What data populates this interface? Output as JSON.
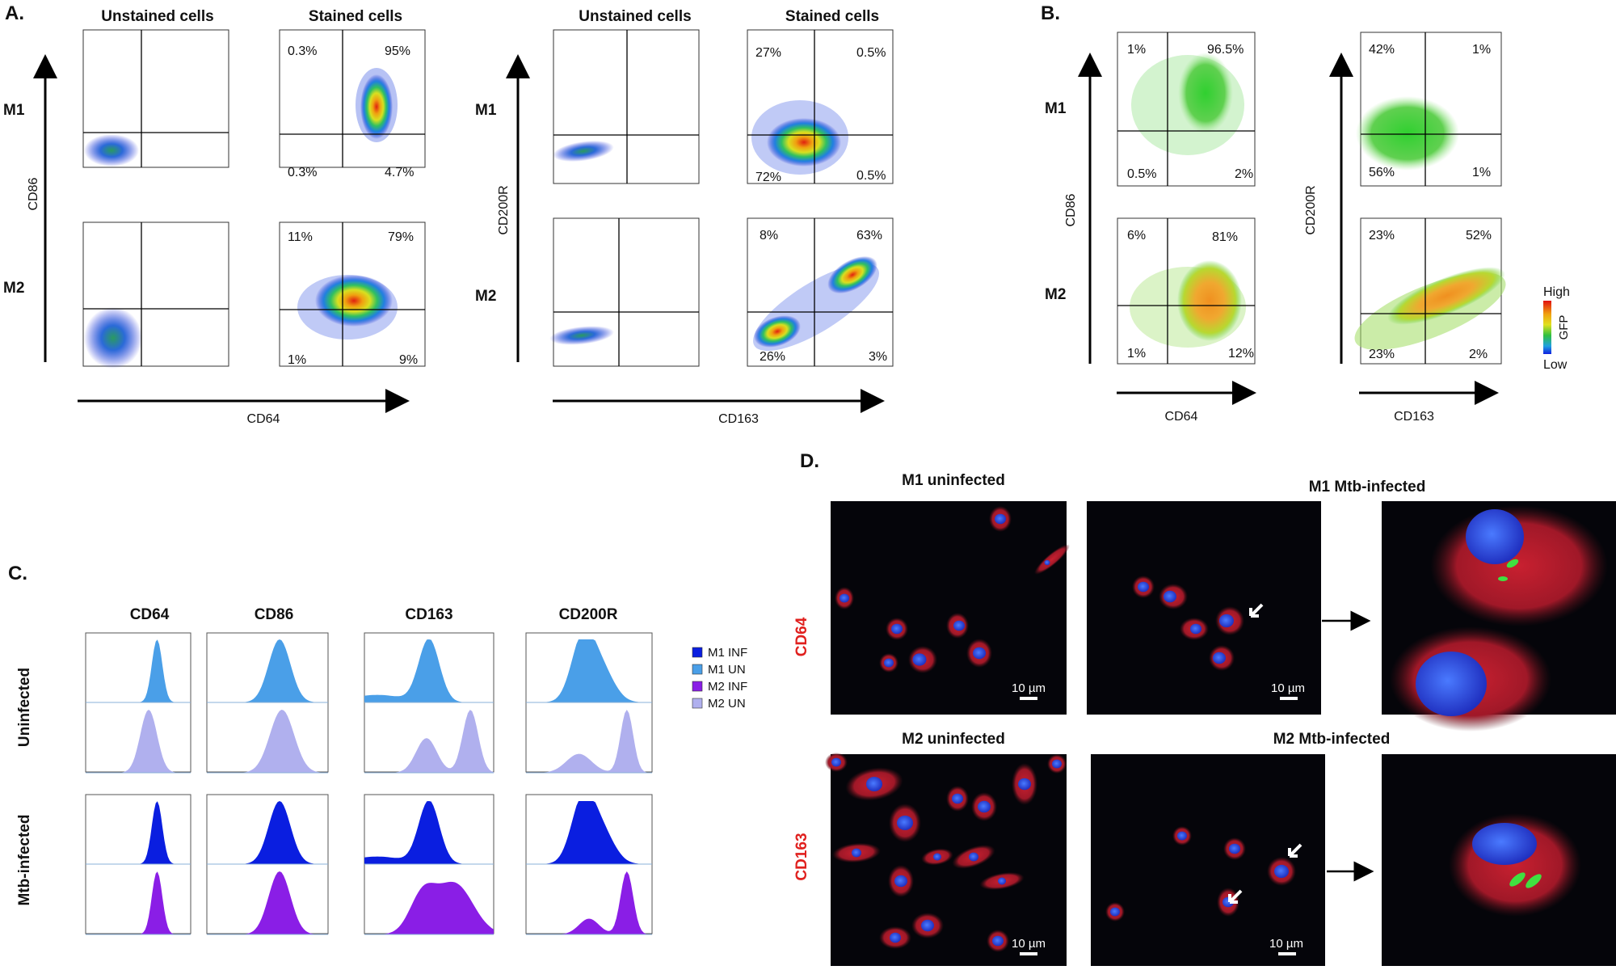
{
  "panel_letters": {
    "A": "A.",
    "B": "B.",
    "C": "C.",
    "D": "D."
  },
  "panelA": {
    "col_unstained": "Unstained cells",
    "col_stained": "Stained cells",
    "row_m1": "M1",
    "row_m2": "M2",
    "left_ylabel": "CD86",
    "left_xlabel": "CD64",
    "right_ylabel": "CD200R",
    "right_xlabel": "CD163",
    "cd64_m1_pcts": {
      "ul": "0.3%",
      "ur": "95%",
      "ll": "0.3%",
      "lr": "4.7%"
    },
    "cd64_m2_pcts": {
      "ul": "11%",
      "ur": "79%",
      "ll": "1%",
      "lr": "9%"
    },
    "cd163_m1_pcts": {
      "ul": "27%",
      "ur": "0.5%",
      "ll": "72%",
      "lr": "0.5%"
    },
    "cd163_m2_pcts": {
      "ul": "8%",
      "ur": "63%",
      "ll": "26%",
      "lr": "3%"
    }
  },
  "panelB": {
    "row_m1": "M1",
    "row_m2": "M2",
    "left_ylabel": "CD86",
    "left_xlabel": "CD64",
    "right_ylabel": "CD200R",
    "right_xlabel": "CD163",
    "cd64_m1_pcts": {
      "ul": "1%",
      "ur": "96.5%",
      "ll": "0.5%",
      "lr": "2%"
    },
    "cd64_m2_pcts": {
      "ul": "6%",
      "ur": "81%",
      "ll": "1%",
      "lr": "12%"
    },
    "cd163_m1_pcts": {
      "ul": "42%",
      "ur": "1%",
      "ll": "56%",
      "lr": "1%"
    },
    "cd163_m2_pcts": {
      "ul": "23%",
      "ur": "52%",
      "ll": "23%",
      "lr": "2%"
    },
    "colorbar_high": "High",
    "colorbar_low": "Low",
    "colorbar_label": "GFP"
  },
  "panelC": {
    "cols": [
      "CD64",
      "CD86",
      "CD163",
      "CD200R"
    ],
    "row_uninfected": "Uninfected",
    "row_infected": "Mtb-infected",
    "legend": [
      {
        "label": "M1 INF",
        "color": "#0a1ee0"
      },
      {
        "label": "M1 UN",
        "color": "#4a9fe8"
      },
      {
        "label": "M2 INF",
        "color": "#8a1ee6"
      },
      {
        "label": "M2 UN",
        "color": "#b0b0ee"
      }
    ]
  },
  "panelD": {
    "m1_uninfected": "M1 uninfected",
    "m1_infected": "M1 Mtb-infected",
    "m2_uninfected": "M2 uninfected",
    "m2_infected": "M2 Mtb-infected",
    "row1_marker": "CD64",
    "row2_marker": "CD163",
    "scale_bar": "10 µm"
  },
  "colors": {
    "text": "#111111",
    "marker_red": "#e0201e"
  }
}
